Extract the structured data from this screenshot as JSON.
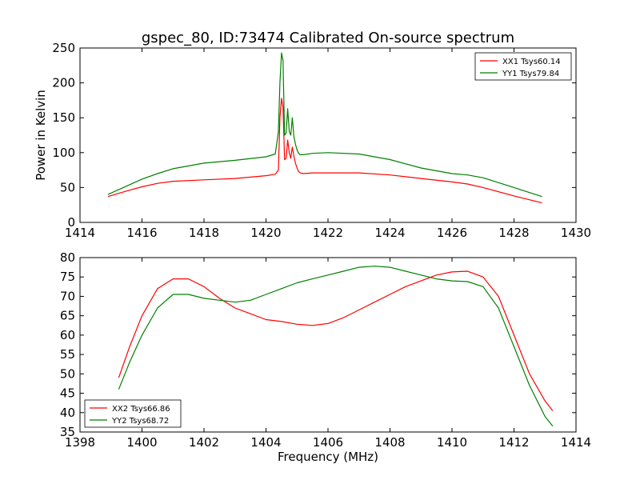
{
  "title": "gspec_80, ID:73474 Calibrated On-source spectrum",
  "chart_data": [
    {
      "type": "line",
      "ylabel": "Power in Kelvin",
      "xlabel": "",
      "xlim": [
        1414,
        1430
      ],
      "ylim": [
        0,
        250
      ],
      "xticks": [
        "1414",
        "1416",
        "1418",
        "1420",
        "1422",
        "1424",
        "1426",
        "1428",
        "1430"
      ],
      "yticks": [
        "0",
        "50",
        "100",
        "150",
        "200",
        "250"
      ],
      "legend_position": "top-right",
      "series": [
        {
          "name": "XX1 Tsys60.14",
          "color": "#ff0000",
          "x": [
            1414.9,
            1415.5,
            1416,
            1416.5,
            1417,
            1418,
            1419,
            1420,
            1420.3,
            1420.4,
            1420.45,
            1420.5,
            1420.55,
            1420.6,
            1420.65,
            1420.7,
            1420.75,
            1420.8,
            1420.85,
            1420.9,
            1420.95,
            1421.0,
            1421.05,
            1421.1,
            1421.2,
            1421.5,
            1422,
            1423,
            1424,
            1425,
            1426,
            1426.5,
            1427,
            1428,
            1428.9
          ],
          "y": [
            37,
            45,
            51,
            56,
            59,
            61,
            63,
            67,
            69,
            75,
            150,
            178,
            165,
            90,
            92,
            118,
            100,
            92,
            108,
            95,
            85,
            78,
            73,
            71,
            70,
            71,
            71,
            71,
            68,
            63,
            58,
            55,
            50,
            38,
            28
          ]
        },
        {
          "name": "YY1 Tsys79.84",
          "color": "#008000",
          "x": [
            1414.9,
            1415.5,
            1416,
            1416.5,
            1417,
            1418,
            1419,
            1420,
            1420.3,
            1420.4,
            1420.45,
            1420.5,
            1420.55,
            1420.6,
            1420.65,
            1420.7,
            1420.75,
            1420.8,
            1420.85,
            1420.9,
            1420.95,
            1421.0,
            1421.05,
            1421.1,
            1421.2,
            1421.5,
            1422,
            1423,
            1424,
            1425,
            1426,
            1426.5,
            1427,
            1428,
            1428.9
          ],
          "y": [
            40,
            52,
            62,
            70,
            77,
            85,
            89,
            94,
            98,
            130,
            200,
            243,
            232,
            125,
            128,
            163,
            130,
            125,
            150,
            123,
            112,
            104,
            99,
            97,
            97,
            99,
            100,
            98,
            90,
            78,
            70,
            68,
            64,
            50,
            37
          ]
        }
      ]
    },
    {
      "type": "line",
      "xlabel": "Frequency (MHz)",
      "ylabel": "",
      "xlim": [
        1398,
        1414
      ],
      "ylim": [
        35,
        80
      ],
      "xticks": [
        "1398",
        "1400",
        "1402",
        "1404",
        "1406",
        "1408",
        "1410",
        "1412",
        "1414"
      ],
      "yticks": [
        "35",
        "40",
        "45",
        "50",
        "55",
        "60",
        "65",
        "70",
        "75",
        "80"
      ],
      "legend_position": "bottom-left",
      "series": [
        {
          "name": "XX2 Tsys66.86",
          "color": "#ff0000",
          "x": [
            1399.25,
            1399.6,
            1400.0,
            1400.5,
            1401.0,
            1401.5,
            1402.0,
            1402.5,
            1403.0,
            1403.5,
            1404.0,
            1404.5,
            1405.0,
            1405.5,
            1406.0,
            1406.5,
            1407.0,
            1407.5,
            1408.0,
            1408.5,
            1409.0,
            1409.5,
            1410.0,
            1410.5,
            1411.0,
            1411.5,
            1412.0,
            1412.5,
            1413.0,
            1413.25
          ],
          "y": [
            49,
            57,
            65,
            72,
            74.5,
            74.5,
            72.5,
            69.5,
            67,
            65.5,
            64,
            63.5,
            62.8,
            62.5,
            63,
            64.5,
            66.5,
            68.5,
            70.5,
            72.5,
            74,
            75.5,
            76.3,
            76.5,
            75,
            70,
            60,
            50,
            43,
            40.5
          ]
        },
        {
          "name": "YY2 Tsys68.72",
          "color": "#008000",
          "x": [
            1399.25,
            1399.6,
            1400.0,
            1400.5,
            1401.0,
            1401.5,
            1402.0,
            1402.5,
            1403.0,
            1403.5,
            1404.0,
            1404.5,
            1405.0,
            1405.5,
            1406.0,
            1406.5,
            1407.0,
            1407.5,
            1408.0,
            1408.5,
            1409.0,
            1409.5,
            1410.0,
            1410.5,
            1411.0,
            1411.5,
            1412.0,
            1412.5,
            1413.0,
            1413.25
          ],
          "y": [
            46,
            53,
            60,
            67,
            70.5,
            70.5,
            69.5,
            69,
            68.5,
            69,
            70.5,
            72,
            73.5,
            74.5,
            75.5,
            76.5,
            77.5,
            77.8,
            77.5,
            76.5,
            75.5,
            74.5,
            74,
            73.8,
            72.5,
            67,
            57,
            47,
            39,
            36.5
          ]
        }
      ]
    }
  ]
}
